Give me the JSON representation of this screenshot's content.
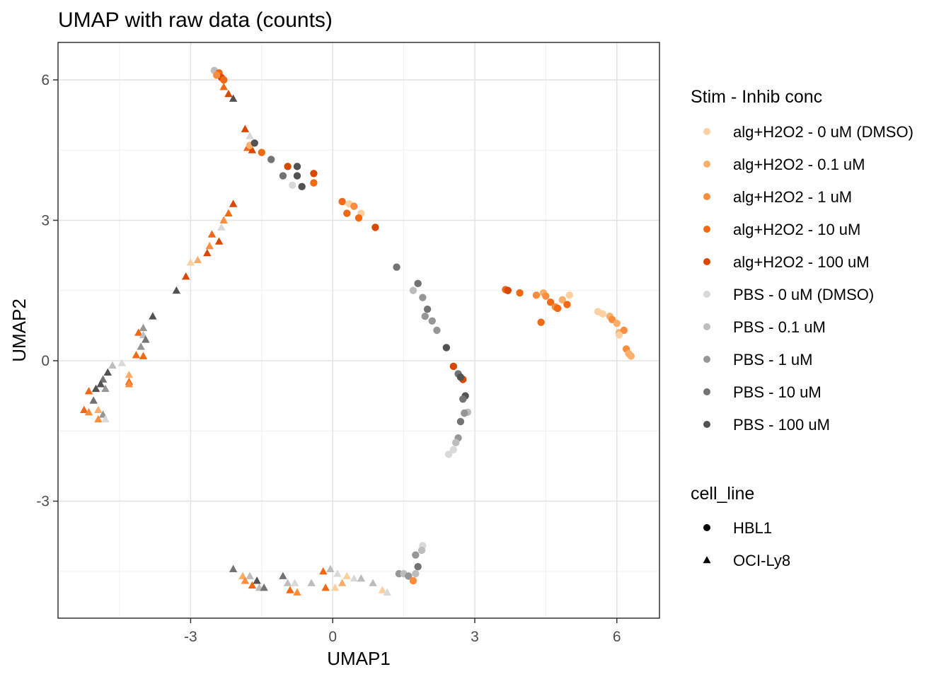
{
  "chart_data": {
    "type": "scatter",
    "title": "UMAP with raw data (counts)",
    "xlabel": "UMAP1",
    "ylabel": "UMAP2",
    "xlim": [
      -5.8,
      6.9
    ],
    "ylim": [
      -5.5,
      6.8
    ],
    "x_ticks": [
      -3,
      0,
      3,
      6
    ],
    "y_ticks": [
      -3,
      0,
      3,
      6
    ],
    "x_tick_labels": [
      "-3",
      "0",
      "3",
      "6"
    ],
    "y_tick_labels": [
      "-3",
      "0",
      "3",
      "6"
    ],
    "grid": true,
    "legend_position": "right",
    "color_legend": {
      "title": "Stim - Inhib conc",
      "entries": [
        {
          "name": "alg+H2O2 - 0 uM (DMSO)",
          "color": "#fdd0a2"
        },
        {
          "name": "alg+H2O2 - 0.1 uM",
          "color": "#fdae6b"
        },
        {
          "name": "alg+H2O2 - 1 uM",
          "color": "#fd8d3c"
        },
        {
          "name": "alg+H2O2 - 10 uM",
          "color": "#f16913"
        },
        {
          "name": "alg+H2O2 - 100 uM",
          "color": "#d94801"
        },
        {
          "name": "PBS - 0 uM (DMSO)",
          "color": "#d9d9d9"
        },
        {
          "name": "PBS - 0.1 uM",
          "color": "#bdbdbd"
        },
        {
          "name": "PBS - 1 uM",
          "color": "#969696"
        },
        {
          "name": "PBS - 10 uM",
          "color": "#737373"
        },
        {
          "name": "PBS - 100 uM",
          "color": "#525252"
        }
      ]
    },
    "shape_legend": {
      "title": "cell_line",
      "entries": [
        {
          "name": "HBL1",
          "shape": "circle"
        },
        {
          "name": "OCI-Ly8",
          "shape": "triangle"
        }
      ]
    },
    "points": [
      {
        "x": -2.5,
        "y": 6.2,
        "c": 6,
        "s": 0
      },
      {
        "x": -2.4,
        "y": 6.15,
        "c": 3,
        "s": 0
      },
      {
        "x": -2.35,
        "y": 6.05,
        "c": 4,
        "s": 0
      },
      {
        "x": -2.3,
        "y": 6.0,
        "c": 3,
        "s": 0
      },
      {
        "x": -2.45,
        "y": 6.1,
        "c": 2,
        "s": 0
      },
      {
        "x": -2.3,
        "y": 5.85,
        "c": 3,
        "s": 1
      },
      {
        "x": -2.2,
        "y": 5.7,
        "c": 4,
        "s": 1
      },
      {
        "x": -2.1,
        "y": 5.6,
        "c": 9,
        "s": 1
      },
      {
        "x": -1.85,
        "y": 4.95,
        "c": 4,
        "s": 1
      },
      {
        "x": -1.75,
        "y": 4.8,
        "c": 5,
        "s": 1
      },
      {
        "x": -1.8,
        "y": 4.55,
        "c": 3,
        "s": 1
      },
      {
        "x": -1.7,
        "y": 4.5,
        "c": 4,
        "s": 1
      },
      {
        "x": -1.75,
        "y": 4.6,
        "c": 1,
        "s": 0
      },
      {
        "x": -1.65,
        "y": 4.65,
        "c": 9,
        "s": 0
      },
      {
        "x": -1.5,
        "y": 4.45,
        "c": 3,
        "s": 0
      },
      {
        "x": -1.3,
        "y": 4.3,
        "c": 8,
        "s": 0
      },
      {
        "x": -0.95,
        "y": 4.15,
        "c": 4,
        "s": 0
      },
      {
        "x": -0.75,
        "y": 4.15,
        "c": 9,
        "s": 0
      },
      {
        "x": -1.05,
        "y": 3.95,
        "c": 8,
        "s": 0
      },
      {
        "x": -0.75,
        "y": 3.95,
        "c": 9,
        "s": 0
      },
      {
        "x": -0.85,
        "y": 3.75,
        "c": 5,
        "s": 0
      },
      {
        "x": -0.65,
        "y": 3.72,
        "c": 9,
        "s": 0
      },
      {
        "x": -0.4,
        "y": 4.0,
        "c": 4,
        "s": 0
      },
      {
        "x": -0.4,
        "y": 3.8,
        "c": 3,
        "s": 0
      },
      {
        "x": 0.2,
        "y": 3.4,
        "c": 3,
        "s": 0
      },
      {
        "x": 0.35,
        "y": 3.35,
        "c": 0,
        "s": 0
      },
      {
        "x": 0.45,
        "y": 3.3,
        "c": 2,
        "s": 0
      },
      {
        "x": 0.3,
        "y": 3.15,
        "c": 3,
        "s": 0
      },
      {
        "x": 0.6,
        "y": 3.15,
        "c": 0,
        "s": 0
      },
      {
        "x": 0.55,
        "y": 3.05,
        "c": 3,
        "s": 0
      },
      {
        "x": 0.9,
        "y": 2.85,
        "c": 4,
        "s": 0
      },
      {
        "x": 1.35,
        "y": 2.0,
        "c": 8,
        "s": 0
      },
      {
        "x": 1.8,
        "y": 1.65,
        "c": 8,
        "s": 0
      },
      {
        "x": 1.7,
        "y": 1.5,
        "c": 6,
        "s": 0
      },
      {
        "x": 1.9,
        "y": 1.35,
        "c": 7,
        "s": 0
      },
      {
        "x": 2.0,
        "y": 1.1,
        "c": 8,
        "s": 0
      },
      {
        "x": 1.95,
        "y": 0.95,
        "c": 7,
        "s": 0
      },
      {
        "x": 2.1,
        "y": 0.85,
        "c": 7,
        "s": 0
      },
      {
        "x": 2.2,
        "y": 0.65,
        "c": 7,
        "s": 0
      },
      {
        "x": 2.4,
        "y": 0.28,
        "c": 9,
        "s": 0
      },
      {
        "x": 2.55,
        "y": -0.12,
        "c": 4,
        "s": 0
      },
      {
        "x": 2.65,
        "y": -0.28,
        "c": 8,
        "s": 0
      },
      {
        "x": 2.75,
        "y": -0.4,
        "c": 4,
        "s": 0
      },
      {
        "x": 2.7,
        "y": -0.35,
        "c": 9,
        "s": 0
      },
      {
        "x": 2.8,
        "y": -0.75,
        "c": 9,
        "s": 0
      },
      {
        "x": 2.75,
        "y": -0.82,
        "c": 8,
        "s": 0
      },
      {
        "x": 2.85,
        "y": -1.1,
        "c": 6,
        "s": 0
      },
      {
        "x": 2.78,
        "y": -1.12,
        "c": 7,
        "s": 0
      },
      {
        "x": 2.7,
        "y": -1.3,
        "c": 8,
        "s": 0
      },
      {
        "x": 2.65,
        "y": -1.65,
        "c": 7,
        "s": 0
      },
      {
        "x": 2.6,
        "y": -1.75,
        "c": 6,
        "s": 0
      },
      {
        "x": 2.55,
        "y": -1.9,
        "c": 5,
        "s": 0
      },
      {
        "x": 2.45,
        "y": -2.0,
        "c": 5,
        "s": 0
      },
      {
        "x": 3.65,
        "y": 1.52,
        "c": 3,
        "s": 0
      },
      {
        "x": 3.7,
        "y": 1.5,
        "c": 4,
        "s": 0
      },
      {
        "x": 3.95,
        "y": 1.45,
        "c": 3,
        "s": 0
      },
      {
        "x": 4.3,
        "y": 1.4,
        "c": 2,
        "s": 0
      },
      {
        "x": 4.45,
        "y": 1.45,
        "c": 1,
        "s": 0
      },
      {
        "x": 4.5,
        "y": 1.38,
        "c": 2,
        "s": 0
      },
      {
        "x": 4.6,
        "y": 1.25,
        "c": 3,
        "s": 0
      },
      {
        "x": 4.7,
        "y": 1.15,
        "c": 2,
        "s": 0
      },
      {
        "x": 4.75,
        "y": 1.12,
        "c": 3,
        "s": 0
      },
      {
        "x": 4.85,
        "y": 1.3,
        "c": 1,
        "s": 0
      },
      {
        "x": 4.95,
        "y": 1.2,
        "c": 3,
        "s": 0
      },
      {
        "x": 5.0,
        "y": 1.4,
        "c": 0,
        "s": 0
      },
      {
        "x": 4.4,
        "y": 0.82,
        "c": 3,
        "s": 0
      },
      {
        "x": 5.6,
        "y": 1.05,
        "c": 0,
        "s": 0
      },
      {
        "x": 5.7,
        "y": 1.0,
        "c": 0,
        "s": 0
      },
      {
        "x": 5.85,
        "y": 0.95,
        "c": 1,
        "s": 0
      },
      {
        "x": 5.9,
        "y": 0.88,
        "c": 2,
        "s": 0
      },
      {
        "x": 6.0,
        "y": 0.8,
        "c": 1,
        "s": 0
      },
      {
        "x": 6.05,
        "y": 0.6,
        "c": 1,
        "s": 0
      },
      {
        "x": 6.15,
        "y": 0.65,
        "c": 2,
        "s": 0
      },
      {
        "x": 6.05,
        "y": 0.55,
        "c": 0,
        "s": 0
      },
      {
        "x": 6.2,
        "y": 0.25,
        "c": 2,
        "s": 0
      },
      {
        "x": 6.25,
        "y": 0.15,
        "c": 1,
        "s": 0
      },
      {
        "x": 6.3,
        "y": 0.1,
        "c": 1,
        "s": 0
      },
      {
        "x": 1.4,
        "y": -4.55,
        "c": 7,
        "s": 0
      },
      {
        "x": 1.5,
        "y": -4.55,
        "c": 6,
        "s": 0
      },
      {
        "x": 1.6,
        "y": -4.6,
        "c": 7,
        "s": 0
      },
      {
        "x": 1.7,
        "y": -4.7,
        "c": 2,
        "s": 0
      },
      {
        "x": 1.75,
        "y": -4.55,
        "c": 6,
        "s": 0
      },
      {
        "x": 1.8,
        "y": -4.4,
        "c": 8,
        "s": 0
      },
      {
        "x": 1.75,
        "y": -4.15,
        "c": 7,
        "s": 0
      },
      {
        "x": 1.9,
        "y": -3.95,
        "c": 5,
        "s": 0
      },
      {
        "x": 1.88,
        "y": -4.05,
        "c": 6,
        "s": 0
      },
      {
        "x": -2.1,
        "y": 3.35,
        "c": 4,
        "s": 1
      },
      {
        "x": -2.2,
        "y": 3.15,
        "c": 3,
        "s": 1
      },
      {
        "x": -2.3,
        "y": 3.0,
        "c": 2,
        "s": 1
      },
      {
        "x": -2.35,
        "y": 2.85,
        "c": 5,
        "s": 1
      },
      {
        "x": -2.55,
        "y": 2.7,
        "c": 3,
        "s": 1
      },
      {
        "x": -2.4,
        "y": 2.55,
        "c": 4,
        "s": 1
      },
      {
        "x": -2.6,
        "y": 2.45,
        "c": 2,
        "s": 1
      },
      {
        "x": -2.65,
        "y": 2.3,
        "c": 4,
        "s": 1
      },
      {
        "x": -2.85,
        "y": 2.15,
        "c": 1,
        "s": 1
      },
      {
        "x": -3.0,
        "y": 2.1,
        "c": 0,
        "s": 1
      },
      {
        "x": -3.1,
        "y": 1.8,
        "c": 4,
        "s": 1
      },
      {
        "x": -3.3,
        "y": 1.5,
        "c": 9,
        "s": 1
      },
      {
        "x": -3.8,
        "y": 0.95,
        "c": 9,
        "s": 1
      },
      {
        "x": -4.1,
        "y": 0.6,
        "c": 3,
        "s": 1
      },
      {
        "x": -4.0,
        "y": 0.7,
        "c": 7,
        "s": 1
      },
      {
        "x": -4.0,
        "y": 0.55,
        "c": 6,
        "s": 1
      },
      {
        "x": -3.95,
        "y": 0.45,
        "c": 8,
        "s": 1
      },
      {
        "x": -4.05,
        "y": 0.3,
        "c": 7,
        "s": 1
      },
      {
        "x": -4.15,
        "y": 0.12,
        "c": 3,
        "s": 1
      },
      {
        "x": -4.0,
        "y": 0.1,
        "c": 3,
        "s": 1
      },
      {
        "x": -4.45,
        "y": -0.05,
        "c": 5,
        "s": 1
      },
      {
        "x": -4.65,
        "y": -0.1,
        "c": 6,
        "s": 1
      },
      {
        "x": -4.75,
        "y": -0.25,
        "c": 9,
        "s": 1
      },
      {
        "x": -4.3,
        "y": -0.3,
        "c": 1,
        "s": 1
      },
      {
        "x": -4.3,
        "y": -0.45,
        "c": 3,
        "s": 1
      },
      {
        "x": -4.85,
        "y": -0.4,
        "c": 8,
        "s": 1
      },
      {
        "x": -4.9,
        "y": -0.5,
        "c": 9,
        "s": 1
      },
      {
        "x": -5.0,
        "y": -0.6,
        "c": 9,
        "s": 1
      },
      {
        "x": -4.8,
        "y": -0.6,
        "c": 7,
        "s": 1
      },
      {
        "x": -5.15,
        "y": -0.65,
        "c": 3,
        "s": 1
      },
      {
        "x": -5.05,
        "y": -0.85,
        "c": 8,
        "s": 1
      },
      {
        "x": -5.25,
        "y": -1.05,
        "c": 3,
        "s": 1
      },
      {
        "x": -5.15,
        "y": -1.1,
        "c": 2,
        "s": 1
      },
      {
        "x": -4.95,
        "y": -1.05,
        "c": 1,
        "s": 1
      },
      {
        "x": -4.85,
        "y": -1.15,
        "c": 7,
        "s": 1
      },
      {
        "x": -4.95,
        "y": -1.25,
        "c": 2,
        "s": 1
      },
      {
        "x": -4.8,
        "y": -1.25,
        "c": 5,
        "s": 1
      },
      {
        "x": -4.3,
        "y": -0.5,
        "c": 2,
        "s": 1
      },
      {
        "x": -2.1,
        "y": -4.45,
        "c": 8,
        "s": 1
      },
      {
        "x": -1.9,
        "y": -4.6,
        "c": 1,
        "s": 1
      },
      {
        "x": -1.75,
        "y": -4.6,
        "c": 6,
        "s": 1
      },
      {
        "x": -1.85,
        "y": -4.7,
        "c": 2,
        "s": 1
      },
      {
        "x": -1.6,
        "y": -4.7,
        "c": 9,
        "s": 1
      },
      {
        "x": -1.7,
        "y": -4.8,
        "c": 3,
        "s": 1
      },
      {
        "x": -1.55,
        "y": -4.85,
        "c": 6,
        "s": 1
      },
      {
        "x": -1.45,
        "y": -4.85,
        "c": 8,
        "s": 1
      },
      {
        "x": -1.05,
        "y": -4.6,
        "c": 8,
        "s": 1
      },
      {
        "x": -0.95,
        "y": -4.75,
        "c": 6,
        "s": 1
      },
      {
        "x": -0.8,
        "y": -4.75,
        "c": 5,
        "s": 1
      },
      {
        "x": -0.9,
        "y": -4.9,
        "c": 3,
        "s": 1
      },
      {
        "x": -0.75,
        "y": -4.95,
        "c": 2,
        "s": 1
      },
      {
        "x": -0.45,
        "y": -4.75,
        "c": 6,
        "s": 1
      },
      {
        "x": -0.2,
        "y": -4.5,
        "c": 3,
        "s": 1
      },
      {
        "x": -0.05,
        "y": -4.45,
        "c": 6,
        "s": 1
      },
      {
        "x": 0.1,
        "y": -4.55,
        "c": 5,
        "s": 1
      },
      {
        "x": -0.15,
        "y": -4.85,
        "c": 3,
        "s": 1
      },
      {
        "x": 0.05,
        "y": -4.85,
        "c": 0,
        "s": 1
      },
      {
        "x": 0.2,
        "y": -4.75,
        "c": 1,
        "s": 1
      },
      {
        "x": 0.3,
        "y": -4.6,
        "c": 0,
        "s": 1
      },
      {
        "x": 0.45,
        "y": -4.65,
        "c": 5,
        "s": 1
      },
      {
        "x": 0.6,
        "y": -4.65,
        "c": 6,
        "s": 1
      },
      {
        "x": 0.85,
        "y": -4.75,
        "c": 6,
        "s": 1
      },
      {
        "x": 1.05,
        "y": -4.9,
        "c": 0,
        "s": 1
      },
      {
        "x": 1.15,
        "y": -4.95,
        "c": 5,
        "s": 1
      }
    ]
  }
}
